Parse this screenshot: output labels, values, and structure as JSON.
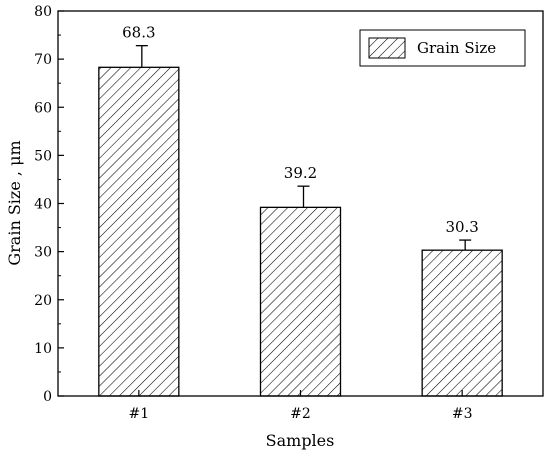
{
  "chart_data": {
    "type": "bar",
    "categories": [
      "#1",
      "#2",
      "#3"
    ],
    "series": [
      {
        "name": "Grain Size",
        "values": [
          68.3,
          39.2,
          30.3
        ],
        "errors": [
          4.5,
          4.4,
          2.1
        ]
      }
    ],
    "data_labels": [
      "68.3",
      "39.2",
      "30.3"
    ],
    "xlabel": "Samples",
    "ylabel": "Grain Size , μm",
    "ylim": [
      0,
      80
    ],
    "yticks": [
      0,
      10,
      20,
      30,
      40,
      50,
      60,
      70,
      80
    ],
    "ytick_labels": [
      "0",
      "10",
      "20",
      "30",
      "40",
      "50",
      "60",
      "70",
      "80"
    ],
    "legend": {
      "placement": "top-right",
      "label": "Grain Size"
    },
    "bar_fill": "diagonal-hatch",
    "grid": false,
    "colors": {
      "stroke": "#000000",
      "background": "#ffffff"
    }
  }
}
